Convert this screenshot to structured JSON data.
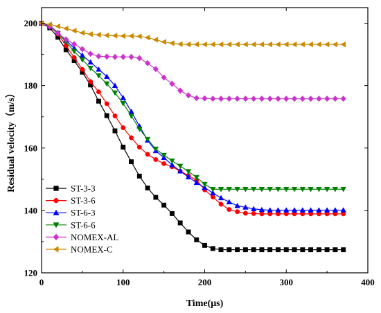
{
  "chart_data": {
    "type": "line",
    "title": "",
    "xlabel": "Time(μs)",
    "ylabel": "Residual velocity（m/s）",
    "xlim": [
      0,
      400
    ],
    "ylim": [
      120,
      205
    ],
    "xticks": [
      0,
      100,
      200,
      300,
      400
    ],
    "yticks": [
      120,
      140,
      160,
      180,
      200
    ],
    "xtick_labels": [
      "0",
      "100",
      "200",
      "300",
      "400"
    ],
    "ytick_labels": [
      "120",
      "140",
      "160",
      "180",
      "200"
    ],
    "grid": false,
    "legend_position": "bottom-left",
    "series": [
      {
        "name": "ST-3-3",
        "color": "#000000",
        "marker": "square",
        "x": [
          0,
          10,
          20,
          30,
          40,
          50,
          60,
          70,
          80,
          90,
          100,
          110,
          120,
          130,
          140,
          150,
          160,
          170,
          180,
          190,
          200,
          210,
          220,
          230,
          240,
          250,
          260,
          270,
          280,
          290,
          300,
          310,
          320,
          330,
          340,
          350,
          360,
          370
        ],
        "y": [
          200,
          198.5,
          195.5,
          191.5,
          188,
          184.3,
          180.2,
          175,
          170.4,
          165.5,
          160.3,
          155.6,
          151,
          147.2,
          144.2,
          141.7,
          139,
          136,
          133.1,
          130.6,
          128.8,
          127.8,
          127.4,
          127.4,
          127.4,
          127.4,
          127.4,
          127.4,
          127.4,
          127.4,
          127.4,
          127.4,
          127.4,
          127.4,
          127.4,
          127.4,
          127.4,
          127.4
        ]
      },
      {
        "name": "ST-3-6",
        "color": "#ff0000",
        "marker": "circle",
        "x": [
          0,
          10,
          20,
          30,
          40,
          50,
          60,
          70,
          80,
          90,
          100,
          110,
          120,
          130,
          140,
          150,
          160,
          170,
          180,
          190,
          200,
          210,
          220,
          230,
          240,
          250,
          260,
          270,
          280,
          290,
          300,
          310,
          320,
          330,
          340,
          350,
          360,
          370
        ],
        "y": [
          200,
          199,
          196.5,
          192.8,
          189,
          185.2,
          181.3,
          178,
          174.2,
          170.3,
          166.5,
          163.3,
          160.3,
          158,
          156.3,
          155,
          154,
          152.6,
          151.2,
          149.7,
          146.6,
          144.3,
          142,
          140.3,
          139.6,
          139.1,
          139,
          138.9,
          138.9,
          138.9,
          138.9,
          138.9,
          138.9,
          138.9,
          138.9,
          138.9,
          138.9,
          138.9
        ]
      },
      {
        "name": "ST-6-3",
        "color": "#0000ff",
        "marker": "triangle-up",
        "x": [
          0,
          10,
          20,
          30,
          40,
          50,
          60,
          70,
          80,
          90,
          100,
          110,
          120,
          130,
          140,
          150,
          160,
          170,
          180,
          190,
          200,
          210,
          220,
          230,
          240,
          250,
          260,
          270,
          280,
          290,
          300,
          310,
          320,
          330,
          340,
          350,
          360,
          370
        ],
        "y": [
          200,
          199.2,
          197,
          194.5,
          192,
          189.7,
          187.5,
          185.2,
          182.9,
          180,
          176.1,
          171.7,
          167,
          162.5,
          159.1,
          156.9,
          154.6,
          152.6,
          150.7,
          148.9,
          147.3,
          145.6,
          144,
          142.7,
          141.5,
          141,
          140.5,
          140.2,
          140.1,
          140.1,
          140.1,
          140.1,
          140.1,
          140.1,
          140.1,
          140.1,
          140.1,
          140.1
        ]
      },
      {
        "name": "ST-6-6",
        "color": "#008000",
        "marker": "triangle-down",
        "x": [
          0,
          10,
          20,
          30,
          40,
          50,
          60,
          70,
          80,
          90,
          100,
          110,
          120,
          130,
          140,
          150,
          160,
          170,
          180,
          190,
          200,
          210,
          220,
          230,
          240,
          250,
          260,
          270,
          280,
          290,
          300,
          310,
          320,
          330,
          340,
          350,
          360,
          370
        ],
        "y": [
          200,
          199,
          196.8,
          194,
          191,
          188.3,
          185.6,
          183.2,
          180.6,
          177.7,
          174.3,
          170.3,
          166.1,
          162.8,
          159.7,
          157.7,
          155.9,
          154.2,
          152.5,
          150.6,
          148.4,
          146.8,
          146.8,
          146.8,
          146.8,
          146.8,
          146.8,
          146.8,
          146.8,
          146.8,
          146.8,
          146.8,
          146.8,
          146.8,
          146.8,
          146.8,
          146.8,
          146.8
        ]
      },
      {
        "name": "NOMEX-AL",
        "color": "#cc33cc",
        "marker": "diamond",
        "x": [
          0,
          10,
          20,
          30,
          40,
          50,
          60,
          70,
          80,
          90,
          100,
          110,
          120,
          130,
          140,
          150,
          160,
          170,
          180,
          190,
          200,
          210,
          220,
          230,
          240,
          250,
          260,
          270,
          280,
          290,
          300,
          310,
          320,
          330,
          340,
          350,
          360,
          370
        ],
        "y": [
          200,
          198.9,
          196.8,
          194.8,
          193.3,
          191.7,
          190.2,
          189.4,
          189.3,
          189.2,
          189.2,
          189.2,
          188.8,
          187.2,
          185.3,
          182.6,
          180.6,
          178.4,
          176.9,
          176,
          175.9,
          175.8,
          175.8,
          175.8,
          175.8,
          175.8,
          175.8,
          175.8,
          175.8,
          175.8,
          175.8,
          175.8,
          175.8,
          175.8,
          175.8,
          175.8,
          175.8,
          175.8
        ]
      },
      {
        "name": "NOMEX-C",
        "color": "#cc8800",
        "marker": "triangle-left",
        "x": [
          0,
          10,
          20,
          30,
          40,
          50,
          60,
          70,
          80,
          90,
          100,
          110,
          120,
          130,
          140,
          150,
          160,
          170,
          180,
          190,
          200,
          210,
          220,
          230,
          240,
          250,
          260,
          270,
          280,
          290,
          300,
          310,
          320,
          330,
          340,
          350,
          360,
          370
        ],
        "y": [
          200,
          199.6,
          199,
          198.3,
          197.6,
          196.9,
          196.5,
          196.3,
          196.1,
          196,
          195.9,
          195.9,
          195.8,
          195.4,
          194.7,
          194,
          193.6,
          193.3,
          193.2,
          193.2,
          193.2,
          193.2,
          193.2,
          193.2,
          193.2,
          193.2,
          193.2,
          193.2,
          193.2,
          193.2,
          193.2,
          193.2,
          193.2,
          193.2,
          193.2,
          193.2,
          193.2,
          193.2
        ]
      }
    ]
  }
}
